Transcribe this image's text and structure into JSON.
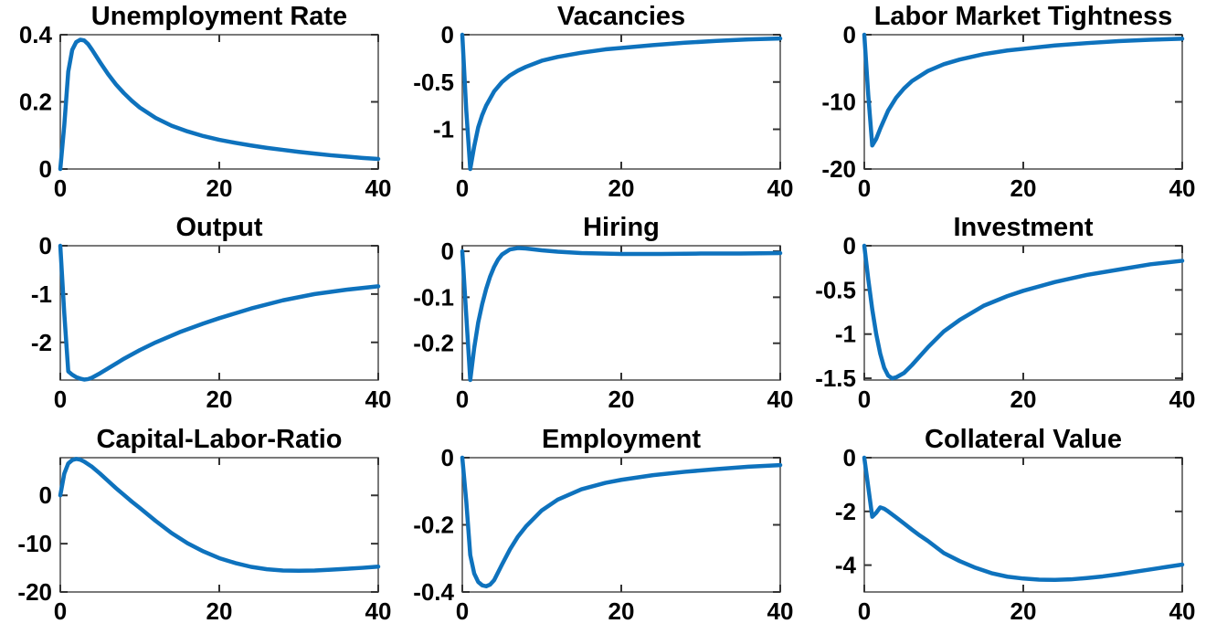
{
  "page": {
    "background": "#ffffff"
  },
  "colors": {
    "line": "#0E72BD",
    "axis": "#4D4D4D",
    "tick": "#333333",
    "text": "#000000",
    "background": "#FFFFFF"
  },
  "chart_data": [
    {
      "type": "line",
      "title": "Unemployment Rate",
      "xlabel": "",
      "ylabel": "",
      "xlim": [
        0,
        40
      ],
      "ylim": [
        0,
        0.4
      ],
      "xtick_vals": [
        0,
        20,
        40
      ],
      "xtick_labels": [
        "0",
        "20",
        "40"
      ],
      "ytick_vals": [
        0,
        0.2,
        0.4
      ],
      "ytick_labels": [
        "0",
        "0.2",
        "0.4"
      ],
      "x": [
        0,
        0.5,
        1,
        1.5,
        2,
        2.5,
        3,
        3.5,
        4,
        5,
        6,
        7,
        8,
        9,
        10,
        12,
        14,
        16,
        18,
        20,
        22,
        24,
        26,
        28,
        30,
        32,
        34,
        36,
        38,
        40
      ],
      "y": [
        0,
        0.13,
        0.29,
        0.355,
        0.378,
        0.385,
        0.383,
        0.372,
        0.355,
        0.318,
        0.283,
        0.252,
        0.226,
        0.203,
        0.183,
        0.152,
        0.129,
        0.112,
        0.098,
        0.087,
        0.078,
        0.07,
        0.063,
        0.057,
        0.051,
        0.046,
        0.041,
        0.037,
        0.033,
        0.03
      ]
    },
    {
      "type": "line",
      "title": "Vacancies",
      "xlabel": "",
      "ylabel": "",
      "xlim": [
        0,
        40
      ],
      "ylim": [
        -1.42,
        0
      ],
      "xtick_vals": [
        0,
        20,
        40
      ],
      "xtick_labels": [
        "0",
        "20",
        "40"
      ],
      "ytick_vals": [
        0,
        -0.5,
        -1
      ],
      "ytick_labels": [
        "0",
        "-0.5",
        "-1"
      ],
      "x": [
        0,
        0.5,
        1,
        1.5,
        2,
        2.5,
        3,
        4,
        5,
        6,
        7,
        8,
        10,
        12,
        15,
        18,
        20,
        24,
        28,
        32,
        36,
        40
      ],
      "y": [
        0,
        -0.8,
        -1.42,
        -1.18,
        -0.98,
        -0.85,
        -0.75,
        -0.6,
        -0.5,
        -0.43,
        -0.38,
        -0.34,
        -0.275,
        -0.235,
        -0.19,
        -0.155,
        -0.14,
        -0.11,
        -0.085,
        -0.065,
        -0.05,
        -0.04
      ]
    },
    {
      "type": "line",
      "title": "Labor Market Tightness",
      "xlabel": "",
      "ylabel": "",
      "xlim": [
        0,
        40
      ],
      "ylim": [
        -20,
        0
      ],
      "xtick_vals": [
        0,
        20,
        40
      ],
      "xtick_labels": [
        "0",
        "20",
        "40"
      ],
      "ytick_vals": [
        0,
        -10,
        -20
      ],
      "ytick_labels": [
        "0",
        "-10",
        "-20"
      ],
      "x": [
        0,
        0.5,
        1,
        1.5,
        2,
        3,
        4,
        5,
        6,
        8,
        10,
        12,
        15,
        18,
        20,
        24,
        28,
        32,
        36,
        40
      ],
      "y": [
        0,
        -9,
        -16.5,
        -15.5,
        -14,
        -11.3,
        -9.4,
        -8.0,
        -6.9,
        -5.4,
        -4.4,
        -3.7,
        -2.9,
        -2.35,
        -2.1,
        -1.6,
        -1.25,
        -0.95,
        -0.75,
        -0.6
      ]
    },
    {
      "type": "line",
      "title": "Output",
      "xlabel": "",
      "ylabel": "",
      "xlim": [
        0,
        40
      ],
      "ylim": [
        -2.78,
        0
      ],
      "xtick_vals": [
        0,
        20,
        40
      ],
      "xtick_labels": [
        "0",
        "20",
        "40"
      ],
      "ytick_vals": [
        0,
        -1,
        -2
      ],
      "ytick_labels": [
        "0",
        "-1",
        "-2"
      ],
      "x": [
        0,
        0.5,
        1,
        1.5,
        2,
        2.5,
        3,
        3.5,
        4,
        5,
        6,
        7,
        8,
        10,
        12,
        15,
        18,
        20,
        24,
        28,
        32,
        36,
        40
      ],
      "y": [
        0,
        -1.4,
        -2.6,
        -2.67,
        -2.72,
        -2.75,
        -2.77,
        -2.76,
        -2.73,
        -2.64,
        -2.54,
        -2.44,
        -2.34,
        -2.16,
        -2.0,
        -1.79,
        -1.61,
        -1.5,
        -1.3,
        -1.13,
        -1.0,
        -0.91,
        -0.84
      ]
    },
    {
      "type": "line",
      "title": "Hiring",
      "xlabel": "",
      "ylabel": "",
      "xlim": [
        0,
        40
      ],
      "ylim": [
        -0.28,
        0.012
      ],
      "xtick_vals": [
        0,
        20,
        40
      ],
      "xtick_labels": [
        "0",
        "20",
        "40"
      ],
      "ytick_vals": [
        0,
        -0.1,
        -0.2
      ],
      "ytick_labels": [
        "0",
        "-0.1",
        "-0.2"
      ],
      "x": [
        0,
        0.5,
        1,
        1.5,
        2,
        2.5,
        3,
        3.5,
        4,
        4.5,
        5,
        6,
        7,
        8,
        10,
        12,
        15,
        20,
        25,
        30,
        35,
        40
      ],
      "y": [
        0,
        -0.14,
        -0.28,
        -0.21,
        -0.155,
        -0.115,
        -0.082,
        -0.055,
        -0.034,
        -0.018,
        -0.007,
        0.004,
        0.007,
        0.006,
        0.002,
        -0.001,
        -0.004,
        -0.006,
        -0.006,
        -0.005,
        -0.005,
        -0.004
      ]
    },
    {
      "type": "line",
      "title": "Investment",
      "xlabel": "",
      "ylabel": "",
      "xlim": [
        0,
        40
      ],
      "ylim": [
        -1.52,
        0
      ],
      "xtick_vals": [
        0,
        20,
        40
      ],
      "xtick_labels": [
        "0",
        "20",
        "40"
      ],
      "ytick_vals": [
        0,
        -0.5,
        -1,
        -1.5
      ],
      "ytick_labels": [
        "0",
        "-0.5",
        "-1",
        "-1.5"
      ],
      "x": [
        0,
        0.5,
        1,
        1.5,
        2,
        2.5,
        3,
        3.5,
        4,
        5,
        6,
        7,
        8,
        10,
        12,
        15,
        18,
        20,
        24,
        28,
        32,
        36,
        40
      ],
      "y": [
        0,
        -0.38,
        -0.72,
        -1.0,
        -1.22,
        -1.38,
        -1.47,
        -1.5,
        -1.49,
        -1.44,
        -1.35,
        -1.25,
        -1.15,
        -0.97,
        -0.84,
        -0.68,
        -0.57,
        -0.51,
        -0.41,
        -0.33,
        -0.27,
        -0.21,
        -0.17
      ]
    },
    {
      "type": "line",
      "title": "Capital-Labor-Ratio",
      "xlabel": "",
      "ylabel": "",
      "xlim": [
        0,
        40
      ],
      "ylim": [
        -20,
        7.8
      ],
      "xtick_vals": [
        0,
        20,
        40
      ],
      "xtick_labels": [
        "0",
        "20",
        "40"
      ],
      "ytick_vals": [
        0,
        -10,
        -20
      ],
      "ytick_labels": [
        "0",
        "-10",
        "-20"
      ],
      "x": [
        0,
        0.5,
        1,
        1.5,
        2,
        2.5,
        3,
        4,
        5,
        6,
        7,
        8,
        9,
        10,
        12,
        14,
        16,
        18,
        20,
        22,
        24,
        26,
        28,
        30,
        32,
        34,
        36,
        38,
        40
      ],
      "y": [
        0,
        4.5,
        6.6,
        7.3,
        7.55,
        7.4,
        7.0,
        5.9,
        4.5,
        3.0,
        1.5,
        0.1,
        -1.3,
        -2.6,
        -5.3,
        -7.8,
        -9.9,
        -11.6,
        -13.0,
        -14.0,
        -14.8,
        -15.3,
        -15.55,
        -15.6,
        -15.55,
        -15.4,
        -15.2,
        -15.0,
        -14.75
      ]
    },
    {
      "type": "line",
      "title": "Employment",
      "xlabel": "",
      "ylabel": "",
      "xlim": [
        0,
        40
      ],
      "ylim": [
        -0.4,
        0
      ],
      "xtick_vals": [
        0,
        20,
        40
      ],
      "xtick_labels": [
        "0",
        "20",
        "40"
      ],
      "ytick_vals": [
        0,
        -0.2,
        -0.4
      ],
      "ytick_labels": [
        "0",
        "-0.2",
        "-0.4"
      ],
      "x": [
        0,
        0.5,
        1,
        1.5,
        2,
        2.5,
        3,
        3.5,
        4,
        5,
        6,
        7,
        8,
        10,
        12,
        15,
        18,
        20,
        24,
        28,
        32,
        36,
        40
      ],
      "y": [
        0,
        -0.13,
        -0.29,
        -0.345,
        -0.37,
        -0.38,
        -0.383,
        -0.378,
        -0.365,
        -0.318,
        -0.273,
        -0.235,
        -0.205,
        -0.157,
        -0.125,
        -0.094,
        -0.075,
        -0.066,
        -0.052,
        -0.042,
        -0.034,
        -0.027,
        -0.022
      ]
    },
    {
      "type": "line",
      "title": "Collateral Value",
      "xlabel": "",
      "ylabel": "",
      "xlim": [
        0,
        40
      ],
      "ylim": [
        -5,
        0
      ],
      "xtick_vals": [
        0,
        20,
        40
      ],
      "xtick_labels": [
        "0",
        "20",
        "40"
      ],
      "ytick_vals": [
        0,
        -2,
        -4
      ],
      "ytick_labels": [
        "0",
        "-2",
        "-4"
      ],
      "x": [
        0,
        0.5,
        1,
        1.5,
        2,
        2.5,
        3,
        4,
        5,
        6,
        7,
        8,
        10,
        12,
        14,
        16,
        18,
        20,
        22,
        24,
        26,
        28,
        30,
        32,
        34,
        36,
        38,
        40
      ],
      "y": [
        0,
        -1.1,
        -2.2,
        -2.05,
        -1.85,
        -1.9,
        -2.0,
        -2.22,
        -2.45,
        -2.68,
        -2.9,
        -3.1,
        -3.55,
        -3.85,
        -4.1,
        -4.3,
        -4.43,
        -4.5,
        -4.54,
        -4.55,
        -4.53,
        -4.48,
        -4.42,
        -4.34,
        -4.25,
        -4.16,
        -4.07,
        -3.98
      ]
    }
  ]
}
